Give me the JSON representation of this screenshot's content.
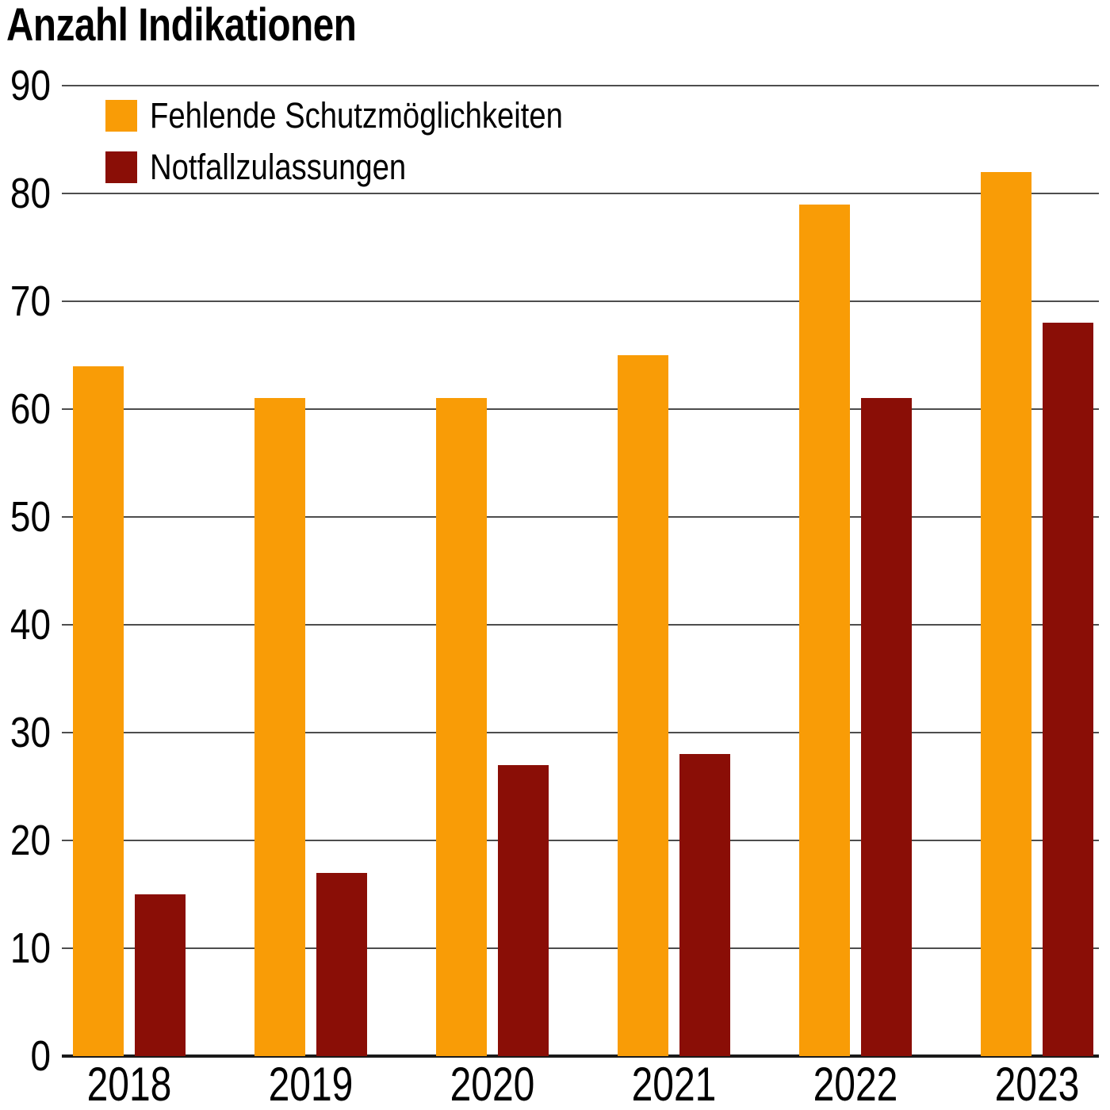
{
  "title": "Anzahl Indikationen",
  "chart_data": {
    "type": "bar",
    "title": "Anzahl Indikationen",
    "categories": [
      "2018",
      "2019",
      "2020",
      "2021",
      "2022",
      "2023"
    ],
    "series": [
      {
        "name": "Fehlende Schutzmöglichkeiten",
        "color": "#F99C06",
        "values": [
          64,
          61,
          61,
          65,
          79,
          82
        ]
      },
      {
        "name": "Notfallzulassungen",
        "color": "#8A0E06",
        "values": [
          15,
          17,
          27,
          28,
          61,
          68
        ]
      }
    ],
    "ylim": [
      0,
      90
    ],
    "yticks": [
      0,
      10,
      20,
      30,
      40,
      50,
      60,
      70,
      80,
      90
    ],
    "grid": true,
    "legend_position": "top-left",
    "grid_color": "#4d4d4d",
    "axis_color": "#1a1a1a",
    "text_color": "#000000"
  }
}
